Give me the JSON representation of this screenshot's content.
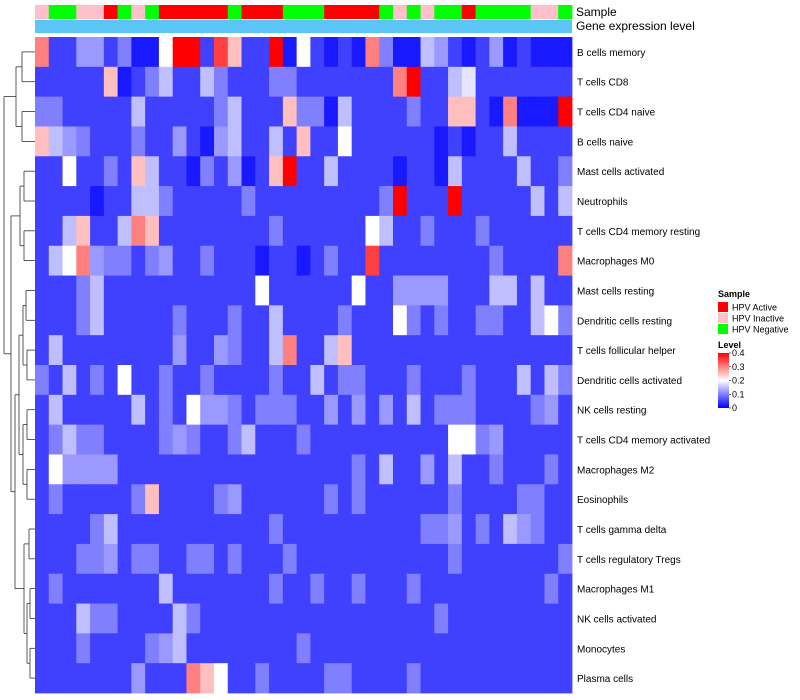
{
  "chart_data": {
    "type": "heatmap",
    "title": "",
    "annotation_labels": {
      "sample": "Sample",
      "gene_expression": "Gene expression level"
    },
    "sample_legend": {
      "title": "Sample",
      "entries": [
        {
          "label": "HPV Active",
          "color": "#ff0000"
        },
        {
          "label": "HPV Inactive",
          "color": "#ffc0cb"
        },
        {
          "label": "HPV Negative",
          "color": "#00ff00"
        }
      ]
    },
    "level_legend": {
      "title": "Level",
      "ticks": [
        "0.4",
        "0.3",
        "0.2",
        "0.1",
        "0"
      ],
      "tick_values": [
        0.4,
        0.3,
        0.2,
        0.1,
        0
      ],
      "range": [
        0,
        0.4
      ],
      "colors": [
        "#0000ff",
        "#ffffff",
        "#ff0000"
      ]
    },
    "sample_annotation": [
      "Inactive",
      "Negative",
      "Negative",
      "Inactive",
      "Inactive",
      "Active",
      "Negative",
      "Inactive",
      "Negative",
      "Active",
      "Active",
      "Active",
      "Active",
      "Active",
      "Negative",
      "Active",
      "Active",
      "Active",
      "Negative",
      "Negative",
      "Negative",
      "Active",
      "Active",
      "Active",
      "Active",
      "Negative",
      "Inactive",
      "Negative",
      "Inactive",
      "Negative",
      "Negative",
      "Active",
      "Negative",
      "Negative",
      "Negative",
      "Negative",
      "Inactive",
      "Inactive",
      "Negative"
    ],
    "gene_expression_color": "#5bc6f5",
    "rows": [
      {
        "name": "B cells memory",
        "values": [
          0.3,
          0.05,
          0.05,
          0.12,
          0.12,
          0.05,
          0.1,
          0.02,
          0.02,
          0.2,
          0.4,
          0.4,
          0.05,
          0.35,
          0.25,
          0.05,
          0.05,
          0.4,
          0.02,
          0.2,
          0.05,
          0.02,
          0.05,
          0.02,
          0.3,
          0.1,
          0.02,
          0.02,
          0.15,
          0.12,
          0.05,
          0.02,
          0.05,
          0.12,
          0.02,
          0.05,
          0.02,
          0.02,
          0.02
        ]
      },
      {
        "name": "T cells CD8",
        "values": [
          0.05,
          0.05,
          0.05,
          0.05,
          0.05,
          0.25,
          0.02,
          0.05,
          0.1,
          0.15,
          0.05,
          0.05,
          0.15,
          0.1,
          0.05,
          0.05,
          0.05,
          0.1,
          0.1,
          0.05,
          0.05,
          0.05,
          0.05,
          0.05,
          0.05,
          0.05,
          0.3,
          0.4,
          0.05,
          0.05,
          0.15,
          0.18,
          0.05,
          0.05,
          0.05,
          0.05,
          0.05,
          0.05,
          0.05
        ]
      },
      {
        "name": "T cells CD4 naive",
        "values": [
          0.1,
          0.1,
          0.05,
          0.05,
          0.05,
          0.05,
          0.05,
          0.15,
          0.05,
          0.05,
          0.05,
          0.05,
          0.05,
          0.1,
          0.15,
          0.05,
          0.05,
          0.05,
          0.25,
          0.1,
          0.1,
          0.02,
          0.15,
          0.05,
          0.05,
          0.05,
          0.05,
          0.1,
          0.05,
          0.05,
          0.25,
          0.25,
          0.05,
          0.02,
          0.3,
          0.02,
          0.02,
          0.02,
          0.4
        ]
      },
      {
        "name": "B cells naive",
        "values": [
          0.25,
          0.15,
          0.12,
          0.1,
          0.05,
          0.05,
          0.05,
          0.1,
          0.05,
          0.05,
          0.12,
          0.05,
          0.02,
          0.12,
          0.15,
          0.05,
          0.05,
          0.15,
          0.05,
          0.25,
          0.05,
          0.05,
          0.2,
          0.05,
          0.05,
          0.05,
          0.05,
          0.05,
          0.05,
          0.02,
          0.05,
          0.02,
          0.05,
          0.05,
          0.15,
          0.05,
          0.05,
          0.05,
          0.05
        ]
      },
      {
        "name": "Mast cells activated",
        "values": [
          0.05,
          0.05,
          0.2,
          0.05,
          0.05,
          0.1,
          0.05,
          0.25,
          0.15,
          0.05,
          0.05,
          0.02,
          0.1,
          0.05,
          0.12,
          0.02,
          0.05,
          0.25,
          0.4,
          0.05,
          0.05,
          0.15,
          0.05,
          0.05,
          0.05,
          0.05,
          0.02,
          0.05,
          0.05,
          0.02,
          0.15,
          0.05,
          0.05,
          0.05,
          0.05,
          0.15,
          0.05,
          0.05,
          0.1
        ]
      },
      {
        "name": "Neutrophils",
        "values": [
          0.05,
          0.05,
          0.05,
          0.05,
          0.02,
          0.05,
          0.05,
          0.15,
          0.15,
          0.1,
          0.05,
          0.05,
          0.05,
          0.05,
          0.05,
          0.1,
          0.05,
          0.05,
          0.05,
          0.05,
          0.05,
          0.05,
          0.05,
          0.05,
          0.05,
          0.1,
          0.4,
          0.05,
          0.05,
          0.05,
          0.4,
          0.05,
          0.05,
          0.05,
          0.05,
          0.05,
          0.15,
          0.05,
          0.15
        ]
      },
      {
        "name": "T cells CD4 memory resting",
        "values": [
          0.05,
          0.05,
          0.15,
          0.25,
          0.05,
          0.05,
          0.15,
          0.3,
          0.25,
          0.05,
          0.05,
          0.05,
          0.05,
          0.05,
          0.05,
          0.05,
          0.05,
          0.1,
          0.05,
          0.05,
          0.05,
          0.05,
          0.05,
          0.05,
          0.2,
          0.15,
          0.05,
          0.05,
          0.1,
          0.05,
          0.05,
          0.05,
          0.1,
          0.05,
          0.05,
          0.05,
          0.05,
          0.05,
          0.05
        ]
      },
      {
        "name": "Macrophages M0",
        "values": [
          0.05,
          0.15,
          0.2,
          0.3,
          0.12,
          0.1,
          0.1,
          0.05,
          0.1,
          0.12,
          0.05,
          0.05,
          0.1,
          0.05,
          0.05,
          0.05,
          0.02,
          0.05,
          0.05,
          0.02,
          0.05,
          0.1,
          0.05,
          0.05,
          0.35,
          0.05,
          0.05,
          0.05,
          0.05,
          0.05,
          0.05,
          0.05,
          0.05,
          0.1,
          0.05,
          0.05,
          0.05,
          0.05,
          0.3
        ]
      },
      {
        "name": "Mast cells resting",
        "values": [
          0.05,
          0.05,
          0.05,
          0.1,
          0.15,
          0.05,
          0.05,
          0.05,
          0.05,
          0.05,
          0.05,
          0.05,
          0.05,
          0.05,
          0.05,
          0.05,
          0.2,
          0.05,
          0.05,
          0.05,
          0.05,
          0.05,
          0.05,
          0.2,
          0.05,
          0.05,
          0.12,
          0.12,
          0.12,
          0.12,
          0.05,
          0.05,
          0.05,
          0.15,
          0.15,
          0.05,
          0.15,
          0.05,
          0.05
        ]
      },
      {
        "name": "Dendritic cells resting",
        "values": [
          0.05,
          0.05,
          0.05,
          0.1,
          0.15,
          0.05,
          0.05,
          0.05,
          0.05,
          0.05,
          0.1,
          0.05,
          0.05,
          0.05,
          0.1,
          0.05,
          0.05,
          0.15,
          0.05,
          0.05,
          0.05,
          0.05,
          0.1,
          0.05,
          0.05,
          0.05,
          0.2,
          0.1,
          0.05,
          0.1,
          0.05,
          0.05,
          0.1,
          0.1,
          0.05,
          0.05,
          0.15,
          0.2,
          0.1
        ]
      },
      {
        "name": "T cells follicular helper",
        "values": [
          0.05,
          0.15,
          0.05,
          0.05,
          0.05,
          0.05,
          0.05,
          0.05,
          0.05,
          0.05,
          0.12,
          0.05,
          0.05,
          0.12,
          0.1,
          0.05,
          0.05,
          0.15,
          0.3,
          0.05,
          0.05,
          0.15,
          0.25,
          0.05,
          0.05,
          0.05,
          0.05,
          0.05,
          0.05,
          0.05,
          0.05,
          0.05,
          0.05,
          0.05,
          0.05,
          0.05,
          0.05,
          0.05,
          0.05
        ]
      },
      {
        "name": "Dendritic cells activated",
        "values": [
          0.1,
          0.05,
          0.15,
          0.05,
          0.1,
          0.05,
          0.2,
          0.05,
          0.05,
          0.1,
          0.05,
          0.05,
          0.1,
          0.05,
          0.05,
          0.05,
          0.05,
          0.1,
          0.05,
          0.05,
          0.15,
          0.05,
          0.1,
          0.1,
          0.05,
          0.05,
          0.05,
          0.1,
          0.05,
          0.05,
          0.05,
          0.1,
          0.05,
          0.05,
          0.05,
          0.15,
          0.05,
          0.15,
          0.1
        ]
      },
      {
        "name": "NK cells resting",
        "values": [
          0.05,
          0.15,
          0.05,
          0.05,
          0.05,
          0.05,
          0.05,
          0.15,
          0.05,
          0.1,
          0.05,
          0.2,
          0.12,
          0.12,
          0.1,
          0.05,
          0.1,
          0.1,
          0.1,
          0.05,
          0.05,
          0.12,
          0.05,
          0.12,
          0.05,
          0.12,
          0.05,
          0.15,
          0.05,
          0.1,
          0.1,
          0.1,
          0.05,
          0.05,
          0.05,
          0.05,
          0.1,
          0.12,
          0.05
        ]
      },
      {
        "name": "T cells CD4 memory activated",
        "values": [
          0.05,
          0.1,
          0.15,
          0.1,
          0.1,
          0.05,
          0.05,
          0.05,
          0.05,
          0.1,
          0.12,
          0.1,
          0.05,
          0.05,
          0.1,
          0.15,
          0.05,
          0.05,
          0.05,
          0.1,
          0.05,
          0.05,
          0.05,
          0.05,
          0.05,
          0.05,
          0.05,
          0.05,
          0.05,
          0.05,
          0.2,
          0.2,
          0.1,
          0.12,
          0.05,
          0.05,
          0.05,
          0.05,
          0.05
        ]
      },
      {
        "name": "Macrophages M2",
        "values": [
          0.05,
          0.2,
          0.12,
          0.12,
          0.12,
          0.12,
          0.05,
          0.05,
          0.05,
          0.05,
          0.05,
          0.05,
          0.05,
          0.05,
          0.05,
          0.05,
          0.05,
          0.05,
          0.05,
          0.05,
          0.05,
          0.05,
          0.05,
          0.1,
          0.05,
          0.15,
          0.05,
          0.05,
          0.12,
          0.05,
          0.15,
          0.05,
          0.05,
          0.1,
          0.05,
          0.05,
          0.05,
          0.1,
          0.05
        ]
      },
      {
        "name": "Eosinophils",
        "values": [
          0.05,
          0.1,
          0.05,
          0.05,
          0.05,
          0.05,
          0.05,
          0.1,
          0.25,
          0.05,
          0.05,
          0.05,
          0.05,
          0.1,
          0.12,
          0.05,
          0.05,
          0.05,
          0.05,
          0.05,
          0.05,
          0.1,
          0.05,
          0.1,
          0.05,
          0.05,
          0.05,
          0.05,
          0.05,
          0.05,
          0.1,
          0.05,
          0.05,
          0.05,
          0.05,
          0.1,
          0.1,
          0.05,
          0.05
        ]
      },
      {
        "name": "T cells gamma delta",
        "values": [
          0.05,
          0.05,
          0.05,
          0.05,
          0.1,
          0.15,
          0.05,
          0.05,
          0.05,
          0.05,
          0.05,
          0.05,
          0.05,
          0.05,
          0.05,
          0.05,
          0.05,
          0.1,
          0.05,
          0.05,
          0.05,
          0.05,
          0.05,
          0.05,
          0.05,
          0.05,
          0.05,
          0.05,
          0.1,
          0.1,
          0.12,
          0.05,
          0.1,
          0.05,
          0.15,
          0.12,
          0.1,
          0.05,
          0.05
        ]
      },
      {
        "name": "T cells regulatory  Tregs",
        "values": [
          0.05,
          0.05,
          0.05,
          0.1,
          0.1,
          0.12,
          0.05,
          0.1,
          0.1,
          0.05,
          0.05,
          0.1,
          0.1,
          0.05,
          0.1,
          0.05,
          0.05,
          0.05,
          0.1,
          0.05,
          0.05,
          0.05,
          0.05,
          0.05,
          0.05,
          0.05,
          0.05,
          0.05,
          0.05,
          0.05,
          0.1,
          0.05,
          0.05,
          0.05,
          0.05,
          0.05,
          0.05,
          0.05,
          0.1
        ]
      },
      {
        "name": "Macrophages M1",
        "values": [
          0.05,
          0.1,
          0.05,
          0.05,
          0.05,
          0.05,
          0.05,
          0.05,
          0.05,
          0.15,
          0.05,
          0.05,
          0.05,
          0.05,
          0.05,
          0.05,
          0.05,
          0.1,
          0.05,
          0.05,
          0.1,
          0.05,
          0.05,
          0.1,
          0.05,
          0.05,
          0.05,
          0.1,
          0.05,
          0.05,
          0.05,
          0.05,
          0.05,
          0.05,
          0.05,
          0.05,
          0.05,
          0.1,
          0.05
        ]
      },
      {
        "name": "NK cells activated",
        "values": [
          0.05,
          0.05,
          0.05,
          0.15,
          0.1,
          0.1,
          0.05,
          0.05,
          0.05,
          0.05,
          0.15,
          0.1,
          0.05,
          0.05,
          0.05,
          0.05,
          0.05,
          0.05,
          0.05,
          0.05,
          0.05,
          0.05,
          0.05,
          0.05,
          0.05,
          0.05,
          0.05,
          0.05,
          0.05,
          0.1,
          0.05,
          0.05,
          0.05,
          0.05,
          0.05,
          0.05,
          0.05,
          0.05,
          0.05
        ]
      },
      {
        "name": "Monocytes",
        "values": [
          0.05,
          0.05,
          0.05,
          0.1,
          0.05,
          0.05,
          0.05,
          0.05,
          0.1,
          0.12,
          0.15,
          0.05,
          0.05,
          0.05,
          0.05,
          0.05,
          0.05,
          0.05,
          0.05,
          0.1,
          0.05,
          0.05,
          0.05,
          0.05,
          0.05,
          0.05,
          0.05,
          0.05,
          0.05,
          0.05,
          0.05,
          0.05,
          0.05,
          0.05,
          0.05,
          0.05,
          0.05,
          0.05,
          0.05
        ]
      },
      {
        "name": "Plasma cells",
        "values": [
          0.05,
          0.05,
          0.05,
          0.05,
          0.05,
          0.05,
          0.05,
          0.12,
          0.05,
          0.05,
          0.05,
          0.3,
          0.25,
          0.2,
          0.05,
          0.05,
          0.1,
          0.05,
          0.05,
          0.05,
          0.05,
          0.1,
          0.1,
          0.05,
          0.05,
          0.05,
          0.05,
          0.1,
          0.05,
          0.05,
          0.05,
          0.05,
          0.05,
          0.05,
          0.05,
          0.05,
          0.05,
          0.05,
          0.05
        ]
      }
    ]
  }
}
